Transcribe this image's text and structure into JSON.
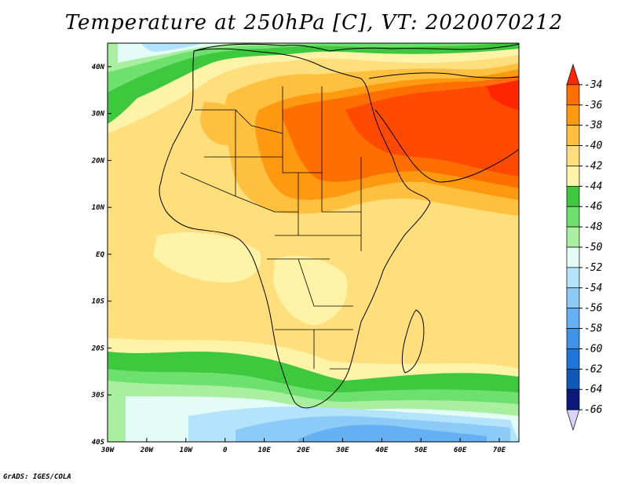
{
  "title": "Temperature at 250hPa [C], VT: 2020070212",
  "credit": "GrADS: IGES/COLA",
  "map": {
    "lon_range": [
      -30,
      75
    ],
    "lat_range": [
      -40,
      45
    ],
    "lon_ticks": [
      {
        "value": -30,
        "label": "30W"
      },
      {
        "value": -20,
        "label": "20W"
      },
      {
        "value": -10,
        "label": "10W"
      },
      {
        "value": 0,
        "label": "0"
      },
      {
        "value": 10,
        "label": "10E"
      },
      {
        "value": 20,
        "label": "20E"
      },
      {
        "value": 30,
        "label": "30E"
      },
      {
        "value": 40,
        "label": "40E"
      },
      {
        "value": 50,
        "label": "50E"
      },
      {
        "value": 60,
        "label": "60E"
      },
      {
        "value": 70,
        "label": "70E"
      }
    ],
    "lat_ticks": [
      {
        "value": 40,
        "label": "40N"
      },
      {
        "value": 30,
        "label": "30N"
      },
      {
        "value": 20,
        "label": "20N"
      },
      {
        "value": 10,
        "label": "10N"
      },
      {
        "value": 0,
        "label": "EQ"
      },
      {
        "value": -10,
        "label": "10S"
      },
      {
        "value": -20,
        "label": "20S"
      },
      {
        "value": -30,
        "label": "30S"
      },
      {
        "value": -40,
        "label": "40S"
      }
    ]
  },
  "colorbar": {
    "levels": [
      {
        "label": "-34",
        "color": "#ff4a00"
      },
      {
        "label": "-36",
        "color": "#ff6e00"
      },
      {
        "label": "-38",
        "color": "#ff9a10"
      },
      {
        "label": "-40",
        "color": "#ffc040"
      },
      {
        "label": "-42",
        "color": "#ffdf7c"
      },
      {
        "label": "-44",
        "color": "#fff3a8"
      },
      {
        "label": "-46",
        "color": "#3ec83e"
      },
      {
        "label": "-48",
        "color": "#6ee06e"
      },
      {
        "label": "-50",
        "color": "#a8f0a0"
      },
      {
        "label": "-52",
        "color": "#e4fcf6"
      },
      {
        "label": "-54",
        "color": "#b4e4fc"
      },
      {
        "label": "-56",
        "color": "#8ccaf8"
      },
      {
        "label": "-58",
        "color": "#64b0f2"
      },
      {
        "label": "-60",
        "color": "#3e94e8"
      },
      {
        "label": "-62",
        "color": "#2076d8"
      },
      {
        "label": "-64",
        "color": "#1258b8"
      },
      {
        "label": "-66",
        "color": "#0a1a78"
      }
    ],
    "top_tip_color": "#ff2600",
    "bottom_tip_color": "#d8d4fc"
  }
}
